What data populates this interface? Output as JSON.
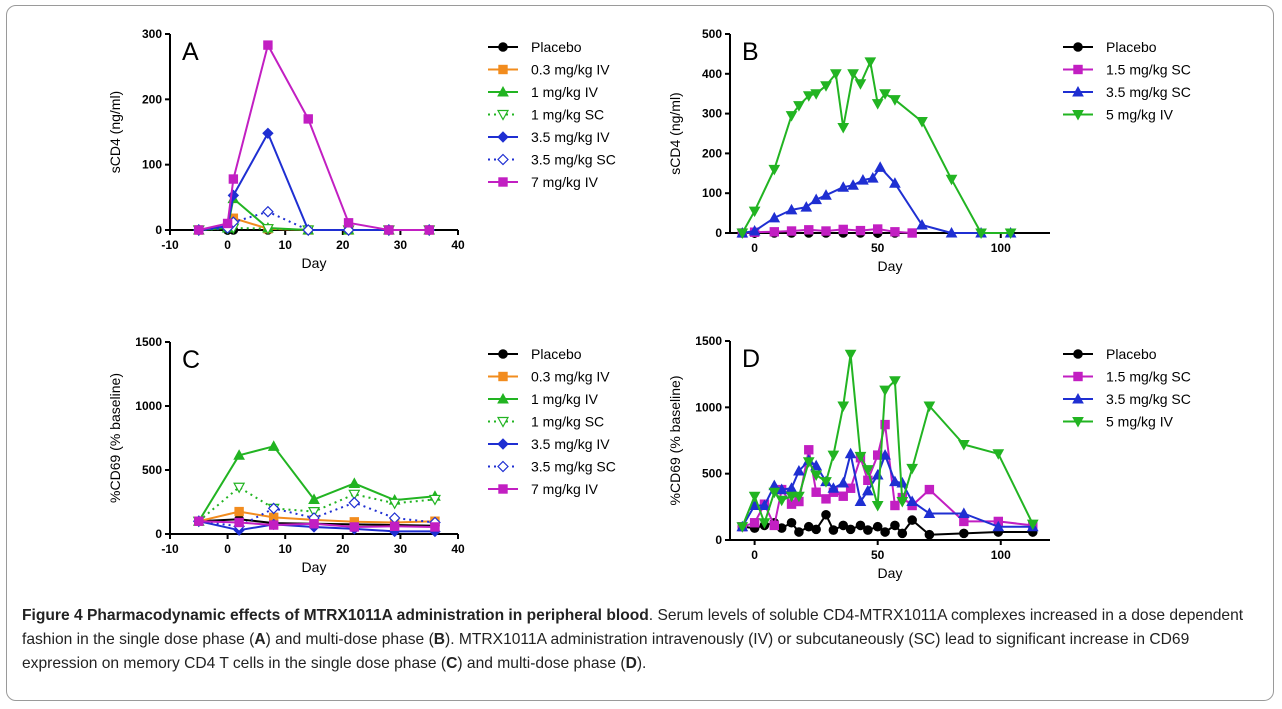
{
  "caption": {
    "title": "Figure 4 Pharmacodynamic effects of MTRX1011A administration in peripheral blood",
    "text_1": ". Serum levels of soluble CD4-MTRX1011A complexes increased in a dose dependent fashion in the single dose phase (",
    "ref_a": "A",
    "text_2": ") and multi-dose phase (",
    "ref_b": "B",
    "text_3": "). MTRX1011A administration intravenously (IV) or subcutaneously (SC) lead to significant increase in CD69 expression on memory CD4 T cells in the single dose phase (",
    "ref_c": "C",
    "text_4": ") and multi-dose phase (",
    "ref_d": "D",
    "text_5": ")."
  },
  "chart_data": [
    {
      "type": "line",
      "panel_label": "A",
      "xlabel": "Day",
      "ylabel": "sCD4 (ng/ml)",
      "xlim": [
        -10,
        40
      ],
      "ylim": [
        0,
        300
      ],
      "xticks": [
        -10,
        0,
        10,
        20,
        30,
        40
      ],
      "yticks": [
        0,
        100,
        200,
        300
      ],
      "legend": "right",
      "series": [
        {
          "name": "Placebo",
          "color": "#000000",
          "marker": "circle",
          "dashed": false,
          "x": [
            -5,
            0,
            1,
            7,
            14,
            21,
            28,
            35
          ],
          "y": [
            0,
            0,
            0,
            0,
            0,
            0,
            0,
            0
          ]
        },
        {
          "name": "0.3 mg/kg IV",
          "color": "#f28c1e",
          "marker": "square",
          "dashed": false,
          "x": [
            -5,
            0,
            1,
            7,
            14,
            21,
            28,
            35
          ],
          "y": [
            0,
            5,
            18,
            2,
            0,
            0,
            0,
            0
          ]
        },
        {
          "name": "1 mg/kg IV",
          "color": "#22b422",
          "marker": "triangle-up",
          "dashed": false,
          "x": [
            -5,
            0,
            1,
            7,
            14,
            21,
            28,
            35
          ],
          "y": [
            0,
            3,
            48,
            3,
            0,
            0,
            0,
            0
          ]
        },
        {
          "name": "1 mg/kg SC",
          "color": "#22b422",
          "marker": "triangle-down-open",
          "dashed": true,
          "x": [
            -5,
            0,
            1,
            7,
            14,
            21,
            28,
            35
          ],
          "y": [
            0,
            2,
            3,
            2,
            0,
            0,
            0,
            0
          ]
        },
        {
          "name": "3.5 mg/kg IV",
          "color": "#1f2fd2",
          "marker": "diamond",
          "dashed": false,
          "x": [
            -5,
            0,
            1,
            7,
            14,
            21,
            28,
            35
          ],
          "y": [
            0,
            6,
            53,
            148,
            0,
            0,
            0,
            0
          ]
        },
        {
          "name": "3.5 mg/kg SC",
          "color": "#1f2fd2",
          "marker": "diamond-open",
          "dashed": true,
          "x": [
            -5,
            0,
            1,
            7,
            14,
            21,
            28,
            35
          ],
          "y": [
            0,
            3,
            12,
            28,
            0,
            0,
            0,
            0
          ]
        },
        {
          "name": "7 mg/kg IV",
          "color": "#c21fc2",
          "marker": "square",
          "dashed": false,
          "x": [
            -5,
            0,
            1,
            7,
            14,
            21,
            28,
            35
          ],
          "y": [
            0,
            10,
            78,
            283,
            170,
            11,
            0,
            0
          ]
        }
      ]
    },
    {
      "type": "line",
      "panel_label": "B",
      "xlabel": "Day",
      "ylabel": "sCD4  (ng/ml)",
      "xlim": [
        -10,
        120
      ],
      "ylim": [
        0,
        500
      ],
      "xticks": [
        0,
        50,
        100
      ],
      "yticks": [
        0,
        100,
        200,
        300,
        400,
        500
      ],
      "legend": "right",
      "series": [
        {
          "name": "Placebo",
          "color": "#000000",
          "marker": "circle",
          "dashed": false,
          "x": [
            -5,
            0,
            8,
            15,
            22,
            29,
            36,
            43,
            50,
            57
          ],
          "y": [
            0,
            0,
            0,
            0,
            0,
            0,
            0,
            0,
            0,
            0
          ]
        },
        {
          "name": "1.5 mg/kg SC",
          "color": "#c21fc2",
          "marker": "square",
          "dashed": false,
          "x": [
            -5,
            0,
            8,
            15,
            22,
            29,
            36,
            43,
            50,
            57,
            64
          ],
          "y": [
            0,
            2,
            3,
            5,
            8,
            5,
            9,
            6,
            10,
            3,
            0
          ]
        },
        {
          "name": "3.5 mg/kg SC",
          "color": "#1f2fd2",
          "marker": "triangle-up",
          "dashed": false,
          "x": [
            -5,
            0,
            8,
            15,
            21,
            25,
            29,
            36,
            40,
            44,
            48,
            51,
            57,
            68,
            80,
            92,
            104
          ],
          "y": [
            0,
            5,
            38,
            58,
            65,
            84,
            95,
            115,
            120,
            133,
            138,
            165,
            125,
            20,
            0,
            0,
            0
          ]
        },
        {
          "name": "5 mg/kg IV",
          "color": "#22b422",
          "marker": "triangle-down",
          "dashed": false,
          "x": [
            -5,
            0,
            8,
            15,
            18,
            22,
            25,
            29,
            33,
            36,
            40,
            43,
            47,
            50,
            53,
            57,
            68,
            80,
            92,
            104
          ],
          "y": [
            0,
            55,
            160,
            295,
            320,
            345,
            350,
            370,
            400,
            265,
            400,
            375,
            430,
            325,
            350,
            335,
            280,
            135,
            0,
            0
          ]
        }
      ]
    },
    {
      "type": "line",
      "panel_label": "C",
      "xlabel": "Day",
      "ylabel": "%CD69 (% baseline)",
      "xlim": [
        -10,
        40
      ],
      "ylim": [
        0,
        1500
      ],
      "xticks": [
        -10,
        0,
        10,
        20,
        30,
        40
      ],
      "yticks": [
        0,
        500,
        1000,
        1500
      ],
      "legend": "right",
      "series": [
        {
          "name": "Placebo",
          "color": "#000000",
          "marker": "circle",
          "dashed": false,
          "x": [
            -5,
            2,
            8,
            15,
            22,
            29,
            36
          ],
          "y": [
            100,
            115,
            85,
            80,
            75,
            70,
            65
          ]
        },
        {
          "name": "0.3 mg/kg IV",
          "color": "#f28c1e",
          "marker": "square",
          "dashed": false,
          "x": [
            -5,
            2,
            8,
            15,
            22,
            29,
            36
          ],
          "y": [
            100,
            175,
            130,
            110,
            95,
            90,
            100
          ]
        },
        {
          "name": "1 mg/kg IV",
          "color": "#22b422",
          "marker": "triangle-up",
          "dashed": false,
          "x": [
            -5,
            2,
            8,
            15,
            22,
            29,
            36
          ],
          "y": [
            100,
            615,
            685,
            270,
            395,
            265,
            295
          ]
        },
        {
          "name": "1 mg/kg SC",
          "color": "#22b422",
          "marker": "triangle-down-open",
          "dashed": true,
          "x": [
            -5,
            2,
            8,
            15,
            22,
            29,
            36
          ],
          "y": [
            100,
            365,
            200,
            175,
            310,
            240,
            270
          ]
        },
        {
          "name": "3.5 mg/kg IV",
          "color": "#1f2fd2",
          "marker": "diamond",
          "dashed": false,
          "x": [
            -5,
            2,
            8,
            15,
            22,
            29,
            36
          ],
          "y": [
            100,
            30,
            75,
            55,
            40,
            20,
            20
          ]
        },
        {
          "name": "3.5 mg/kg SC",
          "color": "#1f2fd2",
          "marker": "diamond-open",
          "dashed": true,
          "x": [
            -5,
            2,
            8,
            15,
            22,
            29,
            36
          ],
          "y": [
            100,
            60,
            200,
            125,
            245,
            125,
            90
          ]
        },
        {
          "name": "7 mg/kg IV",
          "color": "#c21fc2",
          "marker": "square",
          "dashed": false,
          "x": [
            -5,
            2,
            8,
            15,
            22,
            29,
            36
          ],
          "y": [
            100,
            90,
            70,
            80,
            55,
            60,
            55
          ]
        }
      ]
    },
    {
      "type": "line",
      "panel_label": "D",
      "xlabel": "Day",
      "ylabel": "%CD69 (% baseline)",
      "xlim": [
        -10,
        120
      ],
      "ylim": [
        0,
        1500
      ],
      "xticks": [
        0,
        50,
        100
      ],
      "yticks": [
        0,
        500,
        1000,
        1500
      ],
      "legend": "right",
      "series": [
        {
          "name": "Placebo",
          "color": "#000000",
          "marker": "circle",
          "dashed": false,
          "x": [
            -5,
            0,
            4,
            8,
            11,
            15,
            18,
            22,
            25,
            29,
            32,
            36,
            39,
            43,
            46,
            50,
            53,
            57,
            60,
            64,
            71,
            85,
            99,
            113
          ],
          "y": [
            100,
            90,
            110,
            130,
            90,
            130,
            60,
            100,
            80,
            190,
            75,
            110,
            80,
            110,
            75,
            100,
            60,
            110,
            50,
            150,
            40,
            50,
            60,
            60
          ]
        },
        {
          "name": "1.5 mg/kg SC",
          "color": "#c21fc2",
          "marker": "square",
          "dashed": false,
          "x": [
            -5,
            0,
            4,
            8,
            11,
            15,
            18,
            22,
            25,
            29,
            32,
            36,
            39,
            43,
            46,
            50,
            53,
            57,
            60,
            64,
            71,
            85,
            99,
            113
          ],
          "y": [
            100,
            130,
            270,
            110,
            380,
            270,
            290,
            680,
            360,
            310,
            360,
            330,
            390,
            620,
            450,
            640,
            870,
            260,
            320,
            260,
            380,
            140,
            140,
            110
          ]
        },
        {
          "name": "3.5 mg/kg SC",
          "color": "#1f2fd2",
          "marker": "triangle-up",
          "dashed": false,
          "x": [
            -5,
            0,
            4,
            8,
            11,
            15,
            18,
            22,
            25,
            29,
            32,
            36,
            39,
            43,
            46,
            50,
            53,
            57,
            60,
            64,
            71,
            85,
            99,
            113
          ],
          "y": [
            100,
            260,
            260,
            410,
            380,
            390,
            520,
            600,
            560,
            440,
            390,
            430,
            650,
            290,
            370,
            490,
            640,
            440,
            430,
            290,
            200,
            200,
            100,
            100
          ]
        },
        {
          "name": "5 mg/kg IV",
          "color": "#22b422",
          "marker": "triangle-down",
          "dashed": false,
          "x": [
            -5,
            0,
            4,
            8,
            11,
            15,
            18,
            22,
            25,
            29,
            32,
            36,
            39,
            43,
            46,
            50,
            53,
            57,
            60,
            64,
            71,
            85,
            99,
            113
          ],
          "y": [
            100,
            330,
            130,
            360,
            300,
            330,
            330,
            590,
            490,
            440,
            640,
            1010,
            1400,
            630,
            530,
            260,
            1130,
            1200,
            290,
            540,
            1010,
            720,
            650,
            120
          ]
        }
      ]
    }
  ]
}
